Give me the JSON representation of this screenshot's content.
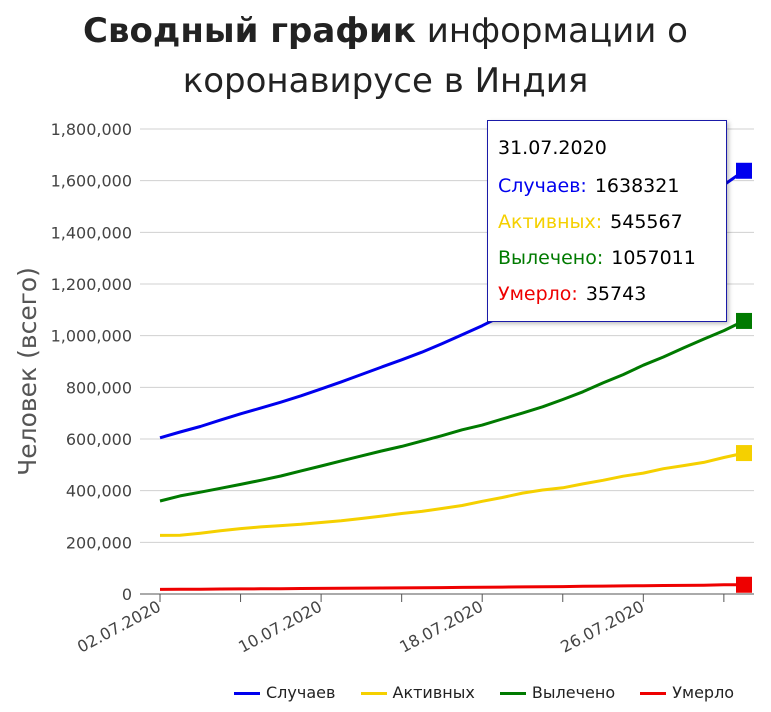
{
  "title": {
    "bold": "Сводный график",
    "rest": "информации о",
    "line2": "коронавирусе в Индия"
  },
  "colors": {
    "cases": "#0000ee",
    "active": "#f5d000",
    "recovered": "#007a00",
    "deaths": "#ee0000"
  },
  "tooltip": {
    "date": "31.07.2020",
    "rows": [
      {
        "label": "Случаев:",
        "value": "1638321",
        "color": "#0000ee"
      },
      {
        "label": "Активных:",
        "value": "545567",
        "color": "#f5d000"
      },
      {
        "label": "Вылечено:",
        "value": "1057011",
        "color": "#007a00"
      },
      {
        "label": "Умерло:",
        "value": "35743",
        "color": "#ee0000"
      }
    ]
  },
  "chart_data": {
    "type": "line",
    "ylabel": "Человек (всего)",
    "xlabel": "",
    "ylim": [
      0,
      1800000
    ],
    "yticks": [
      "0",
      "200,000",
      "400,000",
      "600,000",
      "800,000",
      "1,000,000",
      "1,200,000",
      "1,400,000",
      "1,600,000",
      "1,800,000"
    ],
    "xticks": [
      "02.07.2020",
      "10.07.2020",
      "18.07.2020",
      "26.07.2020"
    ],
    "grid": true,
    "legend": "bottom",
    "x": [
      "02.07.2020",
      "03.07.2020",
      "04.07.2020",
      "05.07.2020",
      "06.07.2020",
      "07.07.2020",
      "08.07.2020",
      "09.07.2020",
      "10.07.2020",
      "11.07.2020",
      "12.07.2020",
      "13.07.2020",
      "14.07.2020",
      "15.07.2020",
      "16.07.2020",
      "17.07.2020",
      "18.07.2020",
      "19.07.2020",
      "20.07.2020",
      "21.07.2020",
      "22.07.2020",
      "23.07.2020",
      "24.07.2020",
      "25.07.2020",
      "26.07.2020",
      "27.07.2020",
      "28.07.2020",
      "29.07.2020",
      "30.07.2020",
      "31.07.2020"
    ],
    "series": [
      {
        "name": "Случаев",
        "values": [
          604641,
          627168,
          648315,
          673165,
          697413,
          719664,
          742417,
          767296,
          793802,
          820916,
          849553,
          878254,
          906752,
          936181,
          968876,
          1003832,
          1038716,
          1077618,
          1118043,
          1155191,
          1192915,
          1238635,
          1288108,
          1336861,
          1385522,
          1435453,
          1483156,
          1531669,
          1583792,
          1638321
        ]
      },
      {
        "name": "Активных",
        "values": [
          226947,
          227439,
          235433,
          244814,
          253287,
          259557,
          264944,
          269789,
          276882,
          283407,
          292258,
          301609,
          311565,
          319840,
          331146,
          342473,
          358692,
          373379,
          390459,
          402529,
          411133,
          426167,
          440135,
          456071,
          467882,
          485114,
          496988,
          509447,
          528242,
          545567
        ]
      },
      {
        "name": "Вылечено",
        "values": [
          359860,
          379892,
          394227,
          409083,
          424433,
          439947,
          456831,
          476378,
          495513,
          515386,
          534621,
          553471,
          571460,
          592032,
          612815,
          635757,
          653751,
          677423,
          700087,
          724578,
          753050,
          782606,
          817209,
          849431,
          885573,
          917568,
          952743,
          986703,
          1019735,
          1057011
        ]
      },
      {
        "name": "Умерло",
        "values": [
          17834,
          18213,
          18655,
          19268,
          19693,
          20160,
          20642,
          21129,
          21604,
          22123,
          22674,
          23174,
          23727,
          24309,
          24915,
          25602,
          26273,
          26816,
          27497,
          28084,
          28732,
          29861,
          30601,
          31358,
          32063,
          32771,
          33425,
          34193,
          35747,
          35743
        ]
      }
    ]
  },
  "legend": [
    {
      "label": "Случаев",
      "color": "#0000ee"
    },
    {
      "label": "Активных",
      "color": "#f5d000"
    },
    {
      "label": "Вылечено",
      "color": "#007a00"
    },
    {
      "label": "Умерло",
      "color": "#ee0000"
    }
  ]
}
